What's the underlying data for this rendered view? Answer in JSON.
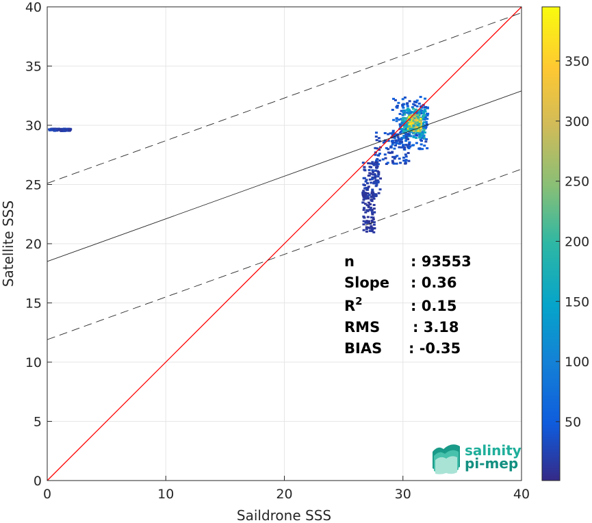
{
  "chart_data": {
    "type": "heatmap",
    "xlabel": "Saildrone SSS",
    "ylabel": "Satellite SSS",
    "xlim": [
      0,
      40
    ],
    "ylim": [
      0,
      40
    ],
    "x_ticks": [
      "0",
      "10",
      "20",
      "30",
      "40"
    ],
    "y_ticks": [
      "0",
      "5",
      "10",
      "15",
      "20",
      "25",
      "30",
      "35",
      "40"
    ],
    "grid": true,
    "colormap": "parula",
    "colorbar": {
      "range": [
        1,
        395
      ],
      "ticks": [
        "50",
        "100",
        "150",
        "200",
        "250",
        "300",
        "350"
      ],
      "values": [
        50,
        100,
        150,
        200,
        250,
        300,
        350
      ]
    },
    "lines": [
      {
        "role": "one-to-one",
        "color": "#ff0000",
        "slope": 1,
        "intercept": 0
      },
      {
        "role": "regression",
        "color": "#262626",
        "slope": 0.36,
        "intercept": 18.5
      },
      {
        "role": "upper-bound",
        "color": "#262626",
        "dash": true,
        "slope": 0.36,
        "intercept": 25.1
      },
      {
        "role": "lower-bound",
        "color": "#262626",
        "dash": true,
        "slope": 0.36,
        "intercept": 11.9
      }
    ],
    "density_clusters": [
      {
        "x": [
          29.0,
          32.0
        ],
        "y": [
          28.0,
          32.5
        ],
        "level": 0.12
      },
      {
        "x": [
          29.8,
          31.8
        ],
        "y": [
          29.0,
          31.5
        ],
        "level": 0.35
      },
      {
        "x": [
          30.3,
          31.4
        ],
        "y": [
          29.6,
          31.0
        ],
        "level": 0.7
      },
      {
        "x": [
          27.5,
          30.5
        ],
        "y": [
          26.8,
          29.5
        ],
        "level": 0.08
      },
      {
        "x": [
          26.5,
          28.0
        ],
        "y": [
          24.0,
          27.0
        ],
        "level": 0.05
      },
      {
        "x": [
          26.5,
          27.5
        ],
        "y": [
          21.0,
          24.5
        ],
        "level": 0.03
      },
      {
        "x": [
          0.0,
          1.9
        ],
        "y": [
          29.6,
          29.8
        ],
        "level": 0.05
      }
    ],
    "stats": [
      {
        "label": "n",
        "value": ": 93553"
      },
      {
        "label": "Slope",
        "value": ": 0.36"
      },
      {
        "label": "R",
        "sup": "2",
        "value": ": 0.15"
      },
      {
        "label": "RMS",
        "value": ": 3.18"
      },
      {
        "label": "BIAS",
        "value": ": -0.35"
      }
    ]
  },
  "logo": {
    "line1": "salinity",
    "line2": "pi-mep"
  }
}
